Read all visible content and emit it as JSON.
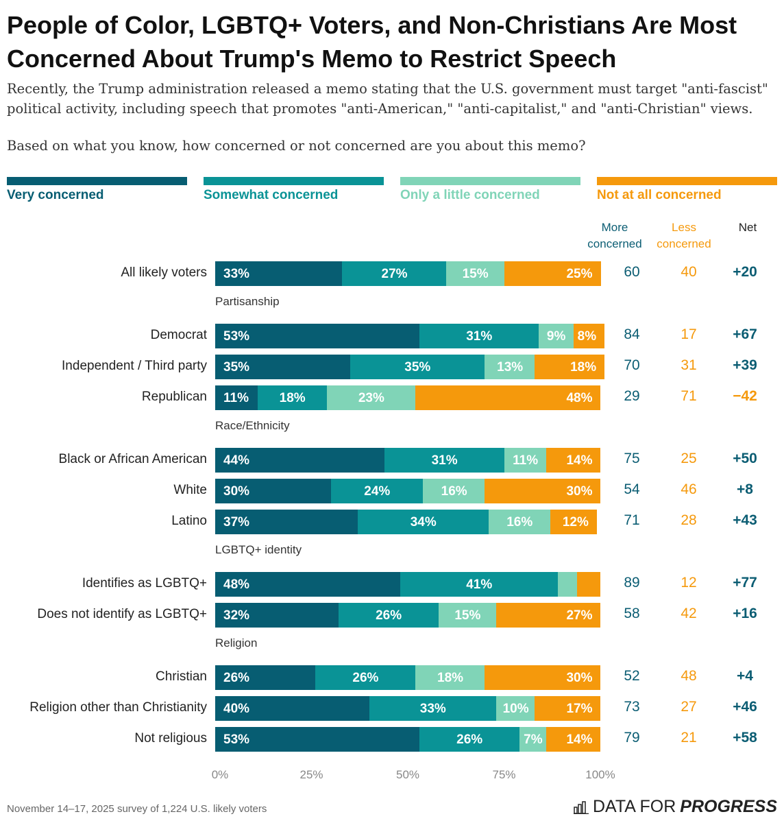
{
  "title": "People of Color, LGBTQ+ Voters, and Non-Christians Are Most Concerned About Trump's Memo to Restrict Speech",
  "subtitle": "Recently, the Trump administration released a memo stating that the U.S. government must target \"anti-fascist\" political activity, including speech that promotes \"anti-American,\" \"anti-capitalist,\" and \"anti-Christian\" views.",
  "question": "Based on what you know, how concerned or not concerned are you about this memo?",
  "footer": "November 14–17, 2025 survey of 1,224 U.S. likely voters",
  "logo": {
    "text_regular": "DATA FOR",
    "text_bold": "PROGRESS",
    "icon": "bar-chart-icon"
  },
  "chart_data": {
    "type": "bar",
    "orientation": "horizontal-stacked",
    "series": [
      {
        "name": "Very concerned",
        "color": "#075d72"
      },
      {
        "name": "Somewhat concerned",
        "color": "#0a9396"
      },
      {
        "name": "Only a little concerned",
        "color": "#80d4b7"
      },
      {
        "name": "Not at all concerned",
        "color": "#f5990c"
      }
    ],
    "column_headers": {
      "more": "More concerned",
      "less": "Less concerned",
      "net": "Net"
    },
    "more_color": "#0b5d73",
    "less_color": "#f5990c",
    "xticks": [
      "0%",
      "25%",
      "50%",
      "75%",
      "100%"
    ],
    "xlim": [
      0,
      100
    ],
    "groups": [
      {
        "label": "",
        "rows": [
          {
            "label": "All likely voters",
            "values": [
              33,
              27,
              15,
              25
            ],
            "more": "60",
            "less": "40",
            "net": "+20"
          }
        ]
      },
      {
        "label": "Partisanship",
        "rows": [
          {
            "label": "Democrat",
            "values": [
              53,
              31,
              9,
              8
            ],
            "more": "84",
            "less": "17",
            "net": "+67"
          },
          {
            "label": "Independent / Third party",
            "values": [
              35,
              35,
              13,
              18
            ],
            "more": "70",
            "less": "31",
            "net": "+39"
          },
          {
            "label": "Republican",
            "values": [
              11,
              18,
              23,
              48
            ],
            "more": "29",
            "less": "71",
            "net": "−42"
          }
        ]
      },
      {
        "label": "Race/Ethnicity",
        "rows": [
          {
            "label": "Black or African American",
            "values": [
              44,
              31,
              11,
              14
            ],
            "more": "75",
            "less": "25",
            "net": "+50"
          },
          {
            "label": "White",
            "values": [
              30,
              24,
              16,
              30
            ],
            "more": "54",
            "less": "46",
            "net": "+8"
          },
          {
            "label": "Latino",
            "values": [
              37,
              34,
              16,
              12
            ],
            "more": "71",
            "less": "28",
            "net": "+43"
          }
        ]
      },
      {
        "label": "LGBTQ+ identity",
        "rows": [
          {
            "label": "Identifies as LGBTQ+",
            "values": [
              48,
              41,
              5,
              6
            ],
            "more": "89",
            "less": "12",
            "net": "+77"
          },
          {
            "label": "Does not identify as LGBTQ+",
            "values": [
              32,
              26,
              15,
              27
            ],
            "more": "58",
            "less": "42",
            "net": "+16"
          }
        ]
      },
      {
        "label": "Religion",
        "rows": [
          {
            "label": "Christian",
            "values": [
              26,
              26,
              18,
              30
            ],
            "more": "52",
            "less": "48",
            "net": "+4"
          },
          {
            "label": "Religion other than Christianity",
            "values": [
              40,
              33,
              10,
              17
            ],
            "more": "73",
            "less": "27",
            "net": "+46"
          },
          {
            "label": "Not religious",
            "values": [
              53,
              26,
              7,
              14
            ],
            "more": "79",
            "less": "21",
            "net": "+58"
          }
        ]
      }
    ]
  }
}
